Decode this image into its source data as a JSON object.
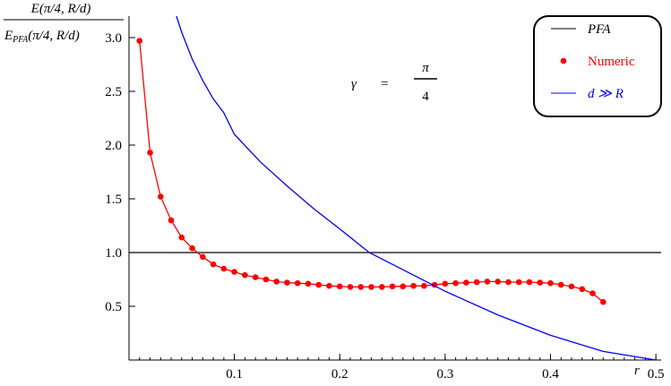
{
  "chart_data": {
    "type": "line",
    "annotation": {
      "lhs": "γ",
      "eq": "=",
      "num": "π",
      "den": "4"
    },
    "y_label": {
      "numerator": "E(π/4, R/d)",
      "denominator": {
        "base": "E",
        "sub": "PFA",
        "rest": "(π/4, R/d)"
      }
    },
    "x_label": "r",
    "xlim": [
      0,
      0.505
    ],
    "ylim": [
      0,
      3.2
    ],
    "xticks": [
      0.1,
      0.2,
      0.3,
      0.4,
      0.5
    ],
    "yticks": [
      0.5,
      1.0,
      1.5,
      2.0,
      2.5,
      3.0
    ],
    "legend": "top-right",
    "series": [
      {
        "name": "PFA",
        "color": "#000000",
        "style": "line",
        "x": [
          0,
          0.505
        ],
        "values": [
          1,
          1
        ]
      },
      {
        "name": "Numeric",
        "color": "#ff0000",
        "style": "points-line",
        "x": [
          0.01,
          0.02,
          0.03,
          0.04,
          0.05,
          0.06,
          0.07,
          0.08,
          0.09,
          0.1,
          0.11,
          0.12,
          0.13,
          0.14,
          0.15,
          0.16,
          0.17,
          0.18,
          0.19,
          0.2,
          0.21,
          0.22,
          0.23,
          0.24,
          0.25,
          0.26,
          0.27,
          0.28,
          0.29,
          0.3,
          0.31,
          0.32,
          0.33,
          0.34,
          0.35,
          0.36,
          0.37,
          0.38,
          0.39,
          0.4,
          0.41,
          0.42,
          0.43,
          0.44,
          0.45
        ],
        "values": [
          2.97,
          1.93,
          1.52,
          1.3,
          1.14,
          1.04,
          0.96,
          0.89,
          0.85,
          0.82,
          0.79,
          0.77,
          0.75,
          0.73,
          0.72,
          0.715,
          0.71,
          0.7,
          0.69,
          0.685,
          0.68,
          0.68,
          0.68,
          0.68,
          0.685,
          0.685,
          0.69,
          0.69,
          0.7,
          0.71,
          0.715,
          0.72,
          0.725,
          0.73,
          0.73,
          0.725,
          0.725,
          0.725,
          0.72,
          0.715,
          0.7,
          0.685,
          0.66,
          0.62,
          0.54
        ]
      },
      {
        "name": "d ≫ R",
        "color": "#0000ff",
        "style": "line",
        "x": [
          0.045,
          0.05,
          0.06,
          0.07,
          0.08,
          0.09,
          0.1,
          0.125,
          0.15,
          0.175,
          0.2,
          0.228,
          0.25,
          0.3,
          0.35,
          0.4,
          0.45,
          0.5
        ],
        "values": [
          3.2,
          3.05,
          2.8,
          2.6,
          2.43,
          2.3,
          2.1,
          1.84,
          1.62,
          1.41,
          1.22,
          1.0,
          0.89,
          0.64,
          0.42,
          0.23,
          0.08,
          0
        ]
      }
    ]
  }
}
